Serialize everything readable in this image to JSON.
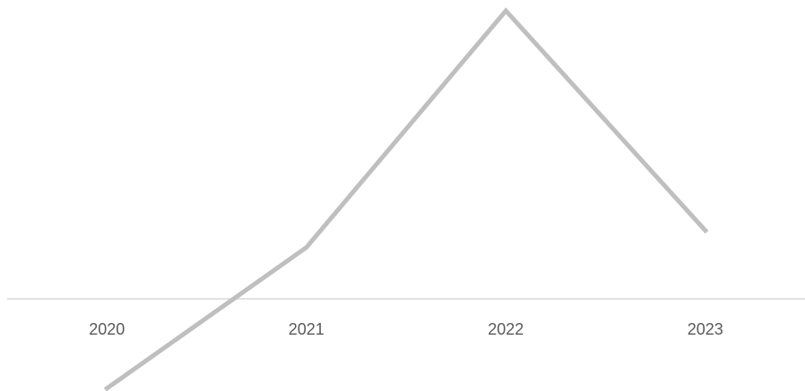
{
  "chart_data": {
    "type": "line",
    "categories": [
      "2020",
      "2021",
      "2022",
      "2023"
    ],
    "series": [
      {
        "values": [
          -1.6,
          0.9,
          5.1,
          1.2
        ]
      }
    ],
    "title": "",
    "xlabel": "",
    "ylabel": "",
    "ylim": [
      -1.6,
      5.1
    ],
    "grid": false,
    "legend": "none",
    "colors": {
      "line": "#bfbfbf",
      "axis": "#d9d9d9",
      "tick_text": "#595959"
    }
  }
}
